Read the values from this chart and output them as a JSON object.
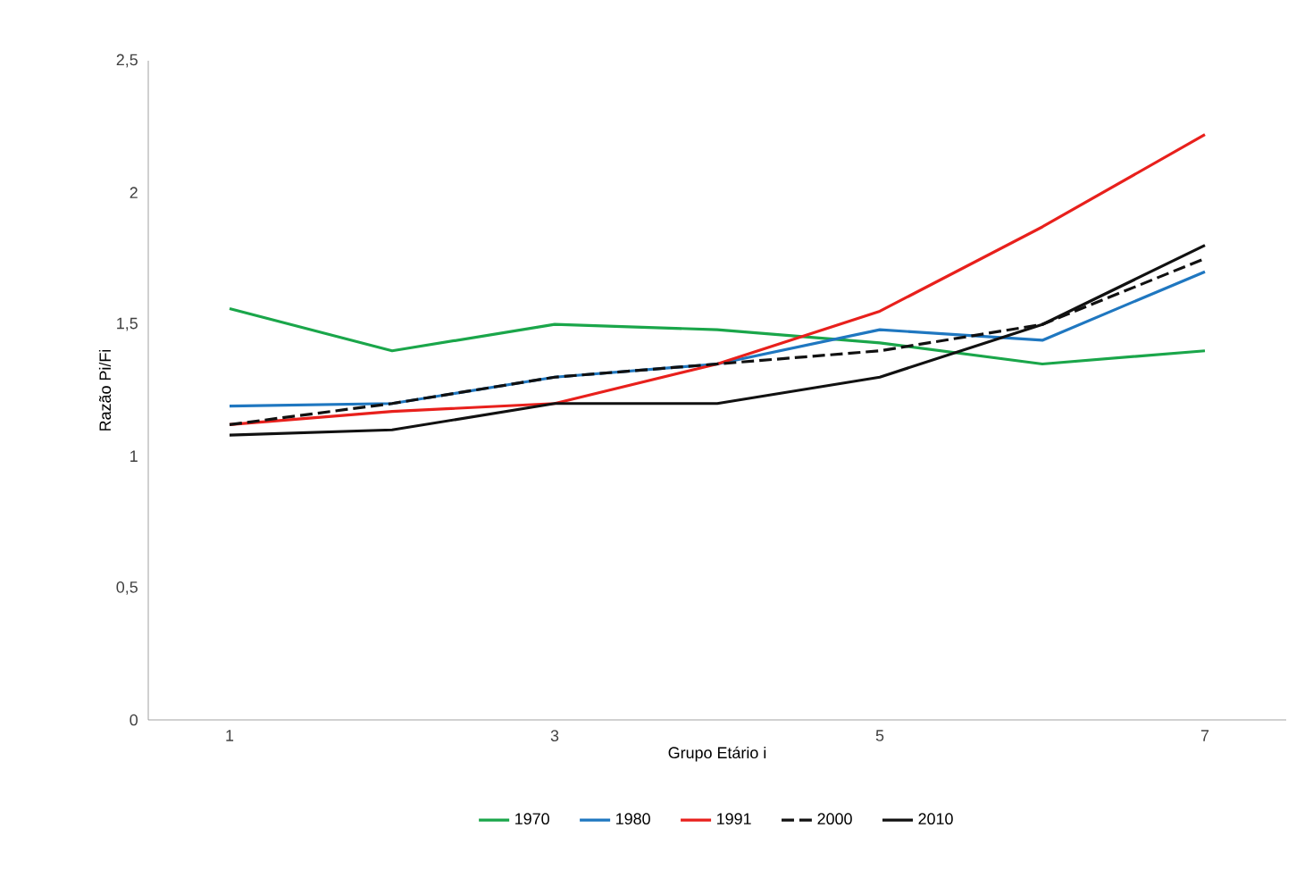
{
  "chart_data": {
    "type": "line",
    "xlabel": "Grupo Etário i",
    "ylabel": "Razão Pi/Fi",
    "x": [
      1,
      2,
      3,
      4,
      5,
      6,
      7
    ],
    "xlim": [
      0.5,
      7.5
    ],
    "xticks": [
      1,
      3,
      5,
      7
    ],
    "ylim": [
      0,
      2.5
    ],
    "yticks": [
      {
        "value": 0,
        "label": "0"
      },
      {
        "value": 0.5,
        "label": "0,5"
      },
      {
        "value": 1,
        "label": "1"
      },
      {
        "value": 1.5,
        "label": "1,5"
      },
      {
        "value": 2,
        "label": "2"
      },
      {
        "value": 2.5,
        "label": "2,5"
      }
    ],
    "grid": false,
    "legend": "bottom",
    "marker": "none",
    "series": [
      {
        "name": "1970",
        "color": "#1aa64a",
        "line_style": "solid",
        "values": [
          1.56,
          1.4,
          1.5,
          1.48,
          1.43,
          1.35,
          1.4
        ]
      },
      {
        "name": "1980",
        "color": "#1f77c0",
        "line_style": "solid",
        "values": [
          1.19,
          1.2,
          1.3,
          1.35,
          1.48,
          1.44,
          1.7
        ]
      },
      {
        "name": "1991",
        "color": "#e8201c",
        "line_style": "solid",
        "values": [
          1.12,
          1.17,
          1.2,
          1.35,
          1.55,
          1.87,
          2.22
        ]
      },
      {
        "name": "2000",
        "color": "#111111",
        "line_style": "dashed",
        "values": [
          1.12,
          1.2,
          1.3,
          1.35,
          1.4,
          1.5,
          1.75
        ]
      },
      {
        "name": "2010",
        "color": "#111111",
        "line_style": "solid",
        "values": [
          1.08,
          1.1,
          1.2,
          1.2,
          1.3,
          1.5,
          1.8
        ]
      }
    ]
  }
}
